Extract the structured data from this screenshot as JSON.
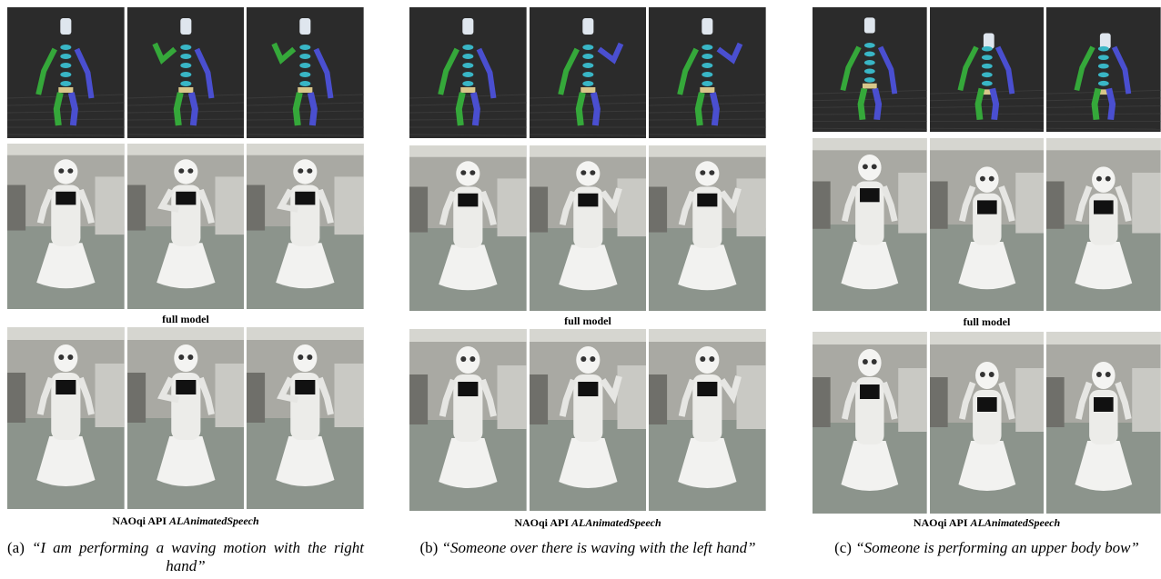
{
  "panels": [
    {
      "row_label_1": "full model",
      "row_label_2": {
        "prefix": "NAOqi API",
        "name": "ALAnimatedSpeech"
      },
      "label": "(a)",
      "caption": "“I am performing a waving motion with the right hand”"
    },
    {
      "row_label_1": "full model",
      "row_label_2": {
        "prefix": "NAOqi API",
        "name": "ALAnimatedSpeech"
      },
      "label": "(b)",
      "caption": "“Someone over there is waving with the left hand”"
    },
    {
      "row_label_1": "full model",
      "row_label_2": {
        "prefix": "NAOqi API",
        "name": "ALAnimatedSpeech"
      },
      "label": "(c)",
      "caption": "“Someone is performing an upper body bow”"
    }
  ]
}
